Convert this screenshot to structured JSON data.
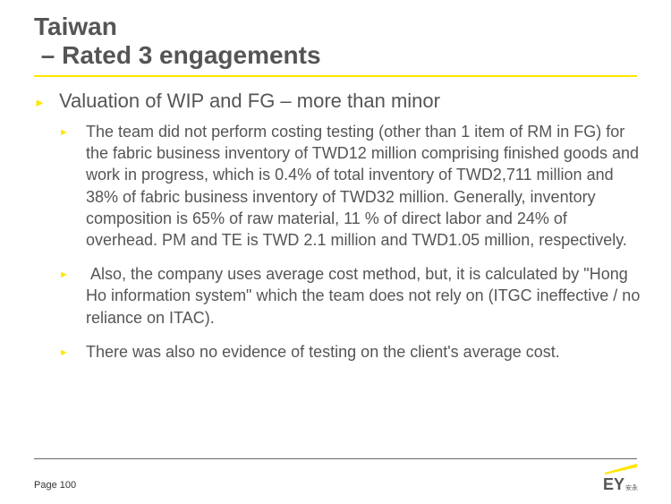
{
  "slide": {
    "title": "Taiwan\n – Rated 3 engagements",
    "bullet": {
      "text": "Valuation of WIP and FG – more than minor",
      "sub_bullets": [
        {
          "text": "The team did not perform costing testing (other than 1 item of RM in FG) for the fabric business inventory of TWD12 million comprising finished goods and work in progress, which is 0.4% of total inventory of TWD2,711 million and 38% of fabric business inventory of TWD32 million. Generally, inventory composition is 65% of raw material, 11 % of direct labor and 24% of overhead. PM and TE is TWD 2.1 million and TWD1.05 million, respectively."
        },
        {
          "text": " Also, the company uses average cost method, but, it is calculated by \"Hong Ho information system\" which the team does not rely on (ITGC ineffective / no reliance on ITAC)."
        },
        {
          "text": "There was also no evidence of testing on the client's average cost."
        }
      ]
    }
  },
  "footer": {
    "page_label": "Page 100",
    "logo_text": "EY",
    "logo_chinese": "安永"
  },
  "icons": {
    "bullet": "triangle-right-icon"
  },
  "colors": {
    "accent_yellow": "#ffe600",
    "text_gray": "#555555",
    "footer_rule": "#666666"
  }
}
